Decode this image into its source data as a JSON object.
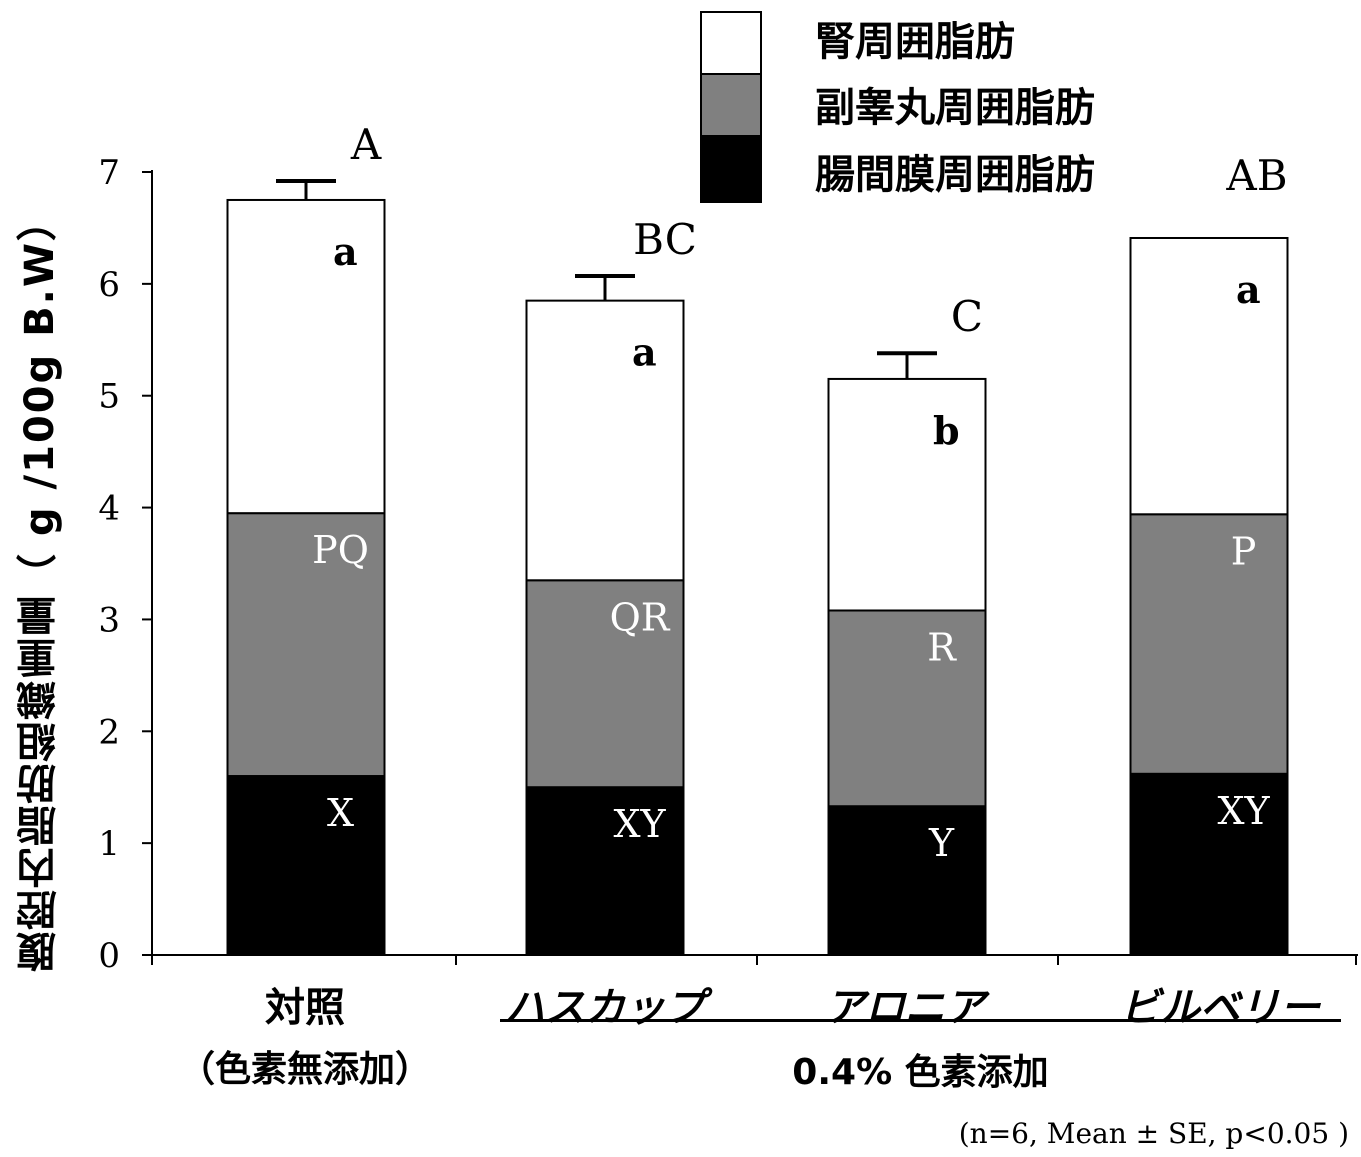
{
  "chart_data": {
    "type": "bar",
    "stacked": true,
    "categories": [
      "対照",
      "ハスカップ",
      "アロニア",
      "ビルベリー"
    ],
    "category_subtitles": [
      "（色素無添加）",
      "",
      "",
      ""
    ],
    "group_label": "0.4% 色素添加",
    "ylabel": "腹腔内脂肪組織重量（ g /100g B.W）",
    "ylim": [
      0,
      7
    ],
    "yticks": [
      "0",
      "1",
      "2",
      "3",
      "4",
      "5",
      "6",
      "7"
    ],
    "series": [
      {
        "name": "腸間膜周囲脂肪",
        "values": [
          1.6,
          1.5,
          1.33,
          1.62
        ],
        "letters": [
          "X",
          "XY",
          "Y",
          "XY"
        ],
        "color": "#000000"
      },
      {
        "name": "副睾丸周囲脂肪",
        "values": [
          2.35,
          1.85,
          1.75,
          2.32
        ],
        "letters": [
          "PQ",
          "QR",
          "R",
          "P"
        ],
        "color": "#808080"
      },
      {
        "name": "腎周囲脂肪",
        "values": [
          2.8,
          2.5,
          2.07,
          2.47
        ],
        "letters": [
          "a",
          "a",
          "b",
          "a"
        ],
        "color": "#ffffff"
      }
    ],
    "totals": [
      6.75,
      5.85,
      5.15,
      6.41
    ],
    "error_bars": [
      0.17,
      0.22,
      0.23,
      null
    ],
    "total_letters": [
      "A",
      "BC",
      "C",
      "AB"
    ],
    "legend_position": "top-right",
    "grid": false
  },
  "footnote": "(n=6, Mean ± SE, p<0.05 )"
}
